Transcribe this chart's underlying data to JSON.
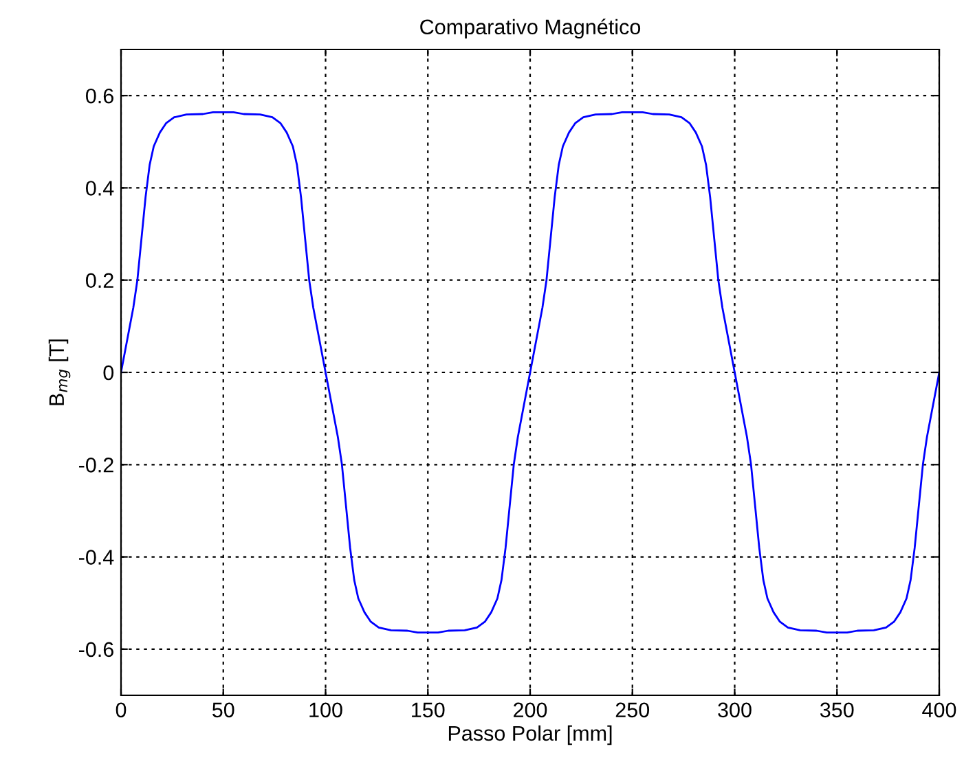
{
  "chart_data": {
    "type": "line",
    "title": "Comparativo Magnético",
    "xlabel": "Passo Polar [mm]",
    "ylabel": "B$_{mg}$ [T]",
    "x": [
      0,
      3,
      6,
      8,
      10,
      12,
      14,
      16,
      19,
      22,
      26,
      32,
      40,
      45,
      55,
      60,
      68,
      74,
      78,
      81,
      84,
      86,
      88,
      90,
      92,
      94,
      97,
      100,
      103,
      106,
      108,
      110,
      112,
      114,
      116,
      119,
      122,
      126,
      132,
      140,
      145,
      155,
      160,
      168,
      174,
      178,
      181,
      184,
      186,
      188,
      190,
      192,
      194,
      197,
      200,
      203,
      206,
      208,
      210,
      212,
      214,
      216,
      219,
      222,
      226,
      232,
      240,
      245,
      255,
      260,
      268,
      274,
      278,
      281,
      284,
      286,
      288,
      290,
      292,
      294,
      297,
      300,
      303,
      306,
      308,
      310,
      312,
      314,
      316,
      319,
      322,
      326,
      332,
      340,
      345,
      355,
      360,
      368,
      374,
      378,
      381,
      384,
      386,
      388,
      390,
      392,
      394,
      397,
      400
    ],
    "series": [
      {
        "color": "#0000ff",
        "values": [
          0,
          0.07,
          0.14,
          0.2,
          0.29,
          0.38,
          0.45,
          0.49,
          0.52,
          0.54,
          0.553,
          0.559,
          0.56,
          0.564,
          0.564,
          0.56,
          0.559,
          0.553,
          0.54,
          0.52,
          0.49,
          0.45,
          0.38,
          0.29,
          0.2,
          0.14,
          0.07,
          0,
          -0.07,
          -0.14,
          -0.2,
          -0.29,
          -0.38,
          -0.45,
          -0.49,
          -0.52,
          -0.54,
          -0.553,
          -0.559,
          -0.56,
          -0.564,
          -0.564,
          -0.56,
          -0.559,
          -0.553,
          -0.54,
          -0.52,
          -0.49,
          -0.45,
          -0.38,
          -0.29,
          -0.2,
          -0.14,
          -0.07,
          0,
          0.07,
          0.14,
          0.2,
          0.29,
          0.38,
          0.45,
          0.49,
          0.52,
          0.54,
          0.553,
          0.559,
          0.56,
          0.564,
          0.564,
          0.56,
          0.559,
          0.553,
          0.54,
          0.52,
          0.49,
          0.45,
          0.38,
          0.29,
          0.2,
          0.14,
          0.07,
          0,
          -0.07,
          -0.14,
          -0.2,
          -0.29,
          -0.38,
          -0.45,
          -0.49,
          -0.52,
          -0.54,
          -0.553,
          -0.559,
          -0.56,
          -0.564,
          -0.564,
          -0.56,
          -0.559,
          -0.553,
          -0.54,
          -0.52,
          -0.49,
          -0.45,
          -0.38,
          -0.29,
          -0.2,
          -0.14,
          -0.07,
          0
        ]
      }
    ],
    "xlim": [
      0,
      400
    ],
    "xticks": [
      0,
      50,
      100,
      150,
      200,
      250,
      300,
      350,
      400
    ],
    "ylim": [
      -0.7,
      0.7
    ],
    "yticks": [
      -0.6,
      -0.4,
      -0.2,
      {
        "value": 0,
        "label": "0"
      },
      0.2,
      0.4,
      0.6
    ],
    "grid": true,
    "line_style": "solid",
    "marker": "none"
  }
}
